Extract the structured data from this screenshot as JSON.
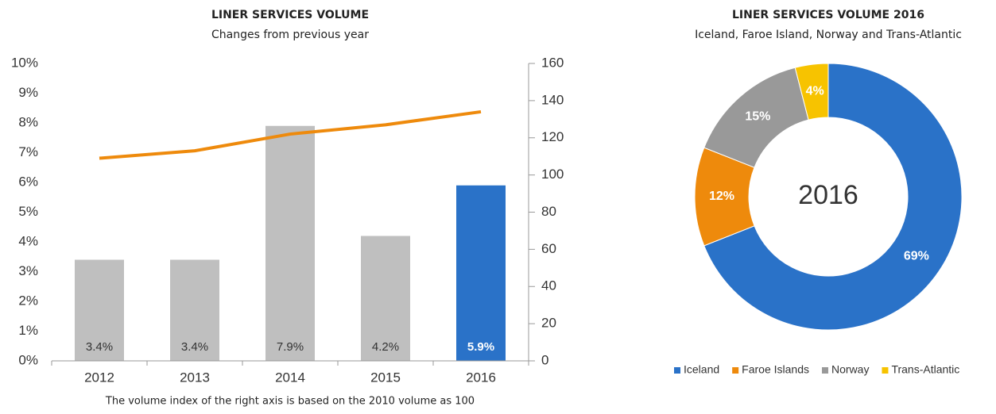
{
  "chart_data": [
    {
      "type": "combo",
      "title": "LINER SERVICES VOLUME",
      "subtitle": "Changes from previous year",
      "note": "The volume index of the right axis is based on the 2010 volume as 100",
      "categories": [
        "2012",
        "2013",
        "2014",
        "2015",
        "2016"
      ],
      "series": [
        {
          "type": "bar",
          "values": [
            3.4,
            3.4,
            7.9,
            4.2,
            5.9
          ],
          "value_labels": [
            "3.4%",
            "3.4%",
            "7.9%",
            "4.2%",
            "5.9%"
          ],
          "colors": [
            "#bfbfbf",
            "#bfbfbf",
            "#bfbfbf",
            "#bfbfbf",
            "#2a72c8"
          ]
        },
        {
          "type": "line",
          "axis": "y2",
          "values": [
            109,
            113,
            122,
            127,
            134
          ],
          "color": "#ee8a0c"
        }
      ],
      "ylim": [
        0,
        10
      ],
      "yticks": [
        {
          "value": 0,
          "label": "0%"
        },
        {
          "value": 1,
          "label": "1%"
        },
        {
          "value": 2,
          "label": "2%"
        },
        {
          "value": 3,
          "label": "3%"
        },
        {
          "value": 4,
          "label": "4%"
        },
        {
          "value": 5,
          "label": "5%"
        },
        {
          "value": 6,
          "label": "6%"
        },
        {
          "value": 7,
          "label": "7%"
        },
        {
          "value": 8,
          "label": "8%"
        },
        {
          "value": 9,
          "label": "9%"
        },
        {
          "value": 10,
          "label": "10%"
        }
      ],
      "y2lim": [
        0,
        160
      ],
      "y2ticks": [
        0,
        20,
        40,
        60,
        80,
        100,
        120,
        140,
        160
      ]
    },
    {
      "type": "donut",
      "title": "LINER SERVICES VOLUME 2016",
      "subtitle": "Iceland, Faroe Island, Norway and Trans-Atlantic",
      "center_label": "2016",
      "categories": [
        "Iceland",
        "Faroe Islands",
        "Norway",
        "Trans-Atlantic"
      ],
      "values": [
        69,
        12,
        15,
        4
      ],
      "value_labels": [
        "69%",
        "12%",
        "15%",
        "4%"
      ],
      "colors": [
        "#2a72c8",
        "#ee8a0c",
        "#999999",
        "#f7c300"
      ],
      "legend": "bottom"
    }
  ]
}
